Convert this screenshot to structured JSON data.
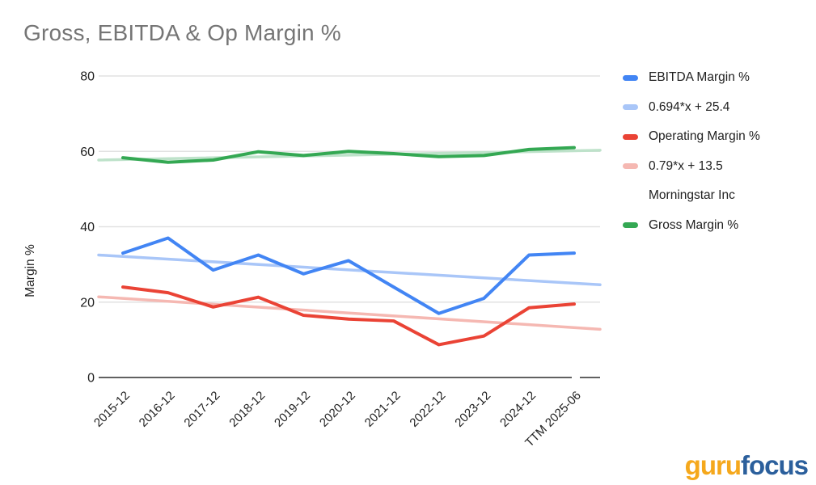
{
  "header": {
    "title": "Gross, EBITDA & Op Margin %"
  },
  "branding": {
    "logo_part1": "guru",
    "logo_part2": "focus",
    "logo_color1": "#F5A81C",
    "logo_color2": "#2B5F9C"
  },
  "chart_data": {
    "type": "line",
    "title": "Gross, EBITDA & Op Margin %",
    "subject_company": "Morningstar Inc",
    "xlabel": "",
    "ylabel": "Margin %",
    "ylim": [
      0,
      80
    ],
    "yticks": [
      0,
      20,
      40,
      60,
      80
    ],
    "grid": true,
    "legend_position": "right",
    "categories": [
      "2015-12",
      "2016-12",
      "2017-12",
      "2018-12",
      "2019-12",
      "2020-12",
      "2021-12",
      "2022-12",
      "2023-12",
      "2024-12",
      "TTM 2025-06"
    ],
    "series": [
      {
        "name": "EBITDA Margin %",
        "color": "#4285F4",
        "values": [
          33,
          37,
          28.5,
          32.5,
          27.5,
          31,
          24,
          17,
          21,
          32.5,
          33
        ]
      },
      {
        "name": "Operating Margin %",
        "color": "#EA4335",
        "values": [
          24,
          22.5,
          18.7,
          21.3,
          16.5,
          15.5,
          15,
          8.7,
          11,
          18.5,
          19.5
        ]
      },
      {
        "name": "Gross Margin %",
        "color": "#34A853",
        "values": [
          58.3,
          57.1,
          57.7,
          59.9,
          58.9,
          60,
          59.4,
          58.6,
          58.9,
          60.5,
          61
        ]
      }
    ],
    "trendlines": [
      {
        "name": "0.694*x + 25.4",
        "series": "EBITDA Margin %",
        "color": "#A9C6F8",
        "start_value": 32.5,
        "end_value": 24.6
      },
      {
        "name": "0.79*x + 13.5",
        "series": "Operating Margin %",
        "color": "#F5B8B2",
        "start_value": 21.4,
        "end_value": 12.8
      },
      {
        "name": "",
        "series": "Gross Margin %",
        "color": "#BEE2CA",
        "start_value": 57.7,
        "end_value": 60.3
      }
    ],
    "legend": [
      {
        "label": "EBITDA Margin %",
        "color": "#4285F4"
      },
      {
        "label": "0.694*x + 25.4",
        "color": "#A9C6F8"
      },
      {
        "label": "Operating Margin %",
        "color": "#EA4335"
      },
      {
        "label": "0.79*x + 13.5",
        "color": "#F5B8B2"
      },
      {
        "label": "Morningstar Inc",
        "color": ""
      },
      {
        "label": "Gross Margin %",
        "color": "#34A853"
      }
    ],
    "axis": {
      "axis_color": "#616161",
      "grid_color": "#e2e2e2",
      "tick_label_color": "#212121"
    }
  }
}
